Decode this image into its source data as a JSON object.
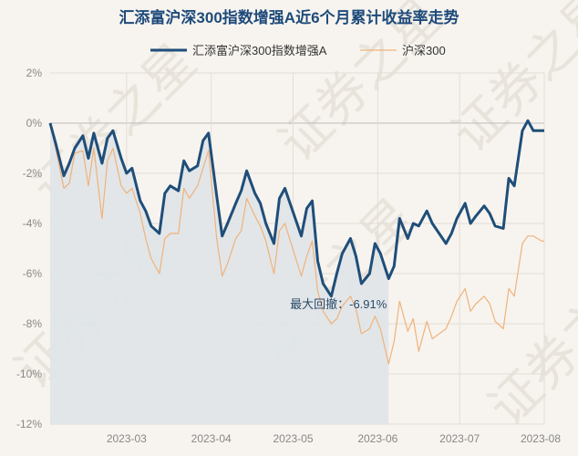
{
  "chart_data": {
    "type": "line",
    "title": "汇添富沪深300指数增强A近6个月累计收益率走势",
    "xlabel": "",
    "ylabel": "",
    "y_unit": "%",
    "ylim": [
      -12,
      2
    ],
    "yticks": [
      2,
      0,
      -2,
      -4,
      -6,
      -8,
      -10,
      -12
    ],
    "xlim": [
      "2023-02-01",
      "2023-08-01"
    ],
    "xticks": [
      "2023-03",
      "2023-04",
      "2023-05",
      "2023-06",
      "2023-07",
      "2023-08"
    ],
    "grid": true,
    "legend_position": "top",
    "watermark": "证券之星",
    "annotation": {
      "label": "最大回撤：-6.91%",
      "date": "2023-06-05",
      "value": -6.91
    },
    "series": [
      {
        "name": "汇添富沪深300指数增强A",
        "color": "#1f4e79",
        "x": [
          "2023-02-01",
          "2023-02-03",
          "2023-02-06",
          "2023-02-08",
          "2023-02-10",
          "2023-02-13",
          "2023-02-15",
          "2023-02-17",
          "2023-02-20",
          "2023-02-22",
          "2023-02-24",
          "2023-02-27",
          "2023-03-01",
          "2023-03-03",
          "2023-03-06",
          "2023-03-08",
          "2023-03-10",
          "2023-03-13",
          "2023-03-15",
          "2023-03-17",
          "2023-03-20",
          "2023-03-22",
          "2023-03-24",
          "2023-03-27",
          "2023-03-29",
          "2023-03-31",
          "2023-04-03",
          "2023-04-05",
          "2023-04-07",
          "2023-04-10",
          "2023-04-12",
          "2023-04-14",
          "2023-04-17",
          "2023-04-19",
          "2023-04-21",
          "2023-04-24",
          "2023-04-26",
          "2023-04-28",
          "2023-05-04",
          "2023-05-06",
          "2023-05-08",
          "2023-05-10",
          "2023-05-12",
          "2023-05-15",
          "2023-05-17",
          "2023-05-19",
          "2023-05-22",
          "2023-05-24",
          "2023-05-26",
          "2023-05-29",
          "2023-05-31",
          "2023-06-02",
          "2023-06-05",
          "2023-06-07",
          "2023-06-09",
          "2023-06-12",
          "2023-06-14",
          "2023-06-16",
          "2023-06-19",
          "2023-06-21",
          "2023-06-26",
          "2023-06-28",
          "2023-06-30",
          "2023-07-03",
          "2023-07-05",
          "2023-07-07",
          "2023-07-10",
          "2023-07-12",
          "2023-07-14",
          "2023-07-17",
          "2023-07-19",
          "2023-07-21",
          "2023-07-24",
          "2023-07-26",
          "2023-07-28",
          "2023-07-31",
          "2023-08-01"
        ],
        "values": [
          0.0,
          -0.8,
          -2.1,
          -1.6,
          -1.0,
          -0.5,
          -1.4,
          -0.4,
          -1.6,
          -0.6,
          -0.3,
          -1.4,
          -2.0,
          -1.8,
          -3.1,
          -3.5,
          -4.1,
          -4.4,
          -2.8,
          -2.5,
          -2.7,
          -1.5,
          -1.9,
          -1.7,
          -0.7,
          -0.4,
          -2.9,
          -4.5,
          -4.0,
          -3.2,
          -2.7,
          -1.9,
          -2.8,
          -3.2,
          -4.0,
          -4.8,
          -3.0,
          -2.6,
          -4.5,
          -3.4,
          -3.1,
          -5.5,
          -6.4,
          -6.9,
          -6.0,
          -5.2,
          -4.6,
          -5.3,
          -6.4,
          -6.0,
          -4.8,
          -5.2,
          -6.2,
          -5.7,
          -3.8,
          -4.6,
          -4.0,
          -4.1,
          -3.5,
          -4.0,
          -4.8,
          -4.4,
          -3.8,
          -3.2,
          -4.0,
          -3.7,
          -3.3,
          -3.6,
          -4.1,
          -4.2,
          -2.2,
          -2.5,
          -0.3,
          0.1,
          -0.3,
          -0.3,
          -0.3
        ]
      },
      {
        "name": "沪深300",
        "color": "#f0b27a",
        "x": [
          "2023-02-01",
          "2023-02-03",
          "2023-02-06",
          "2023-02-08",
          "2023-02-10",
          "2023-02-13",
          "2023-02-15",
          "2023-02-17",
          "2023-02-20",
          "2023-02-22",
          "2023-02-24",
          "2023-02-27",
          "2023-03-01",
          "2023-03-03",
          "2023-03-06",
          "2023-03-08",
          "2023-03-10",
          "2023-03-13",
          "2023-03-15",
          "2023-03-17",
          "2023-03-20",
          "2023-03-22",
          "2023-03-24",
          "2023-03-27",
          "2023-03-29",
          "2023-03-31",
          "2023-04-03",
          "2023-04-05",
          "2023-04-07",
          "2023-04-10",
          "2023-04-12",
          "2023-04-14",
          "2023-04-17",
          "2023-04-19",
          "2023-04-21",
          "2023-04-24",
          "2023-04-26",
          "2023-04-28",
          "2023-05-04",
          "2023-05-06",
          "2023-05-08",
          "2023-05-10",
          "2023-05-12",
          "2023-05-15",
          "2023-05-17",
          "2023-05-19",
          "2023-05-22",
          "2023-05-24",
          "2023-05-26",
          "2023-05-29",
          "2023-05-31",
          "2023-06-02",
          "2023-06-05",
          "2023-06-07",
          "2023-06-09",
          "2023-06-12",
          "2023-06-14",
          "2023-06-16",
          "2023-06-19",
          "2023-06-21",
          "2023-06-26",
          "2023-06-28",
          "2023-06-30",
          "2023-07-03",
          "2023-07-05",
          "2023-07-07",
          "2023-07-10",
          "2023-07-12",
          "2023-07-14",
          "2023-07-17",
          "2023-07-19",
          "2023-07-21",
          "2023-07-24",
          "2023-07-26",
          "2023-07-28",
          "2023-07-31",
          "2023-08-01"
        ],
        "values": [
          0.0,
          -1.0,
          -2.6,
          -2.4,
          -1.2,
          -1.1,
          -2.5,
          -1.0,
          -3.8,
          -1.5,
          -1.0,
          -2.5,
          -2.8,
          -2.6,
          -3.6,
          -4.6,
          -5.4,
          -6.0,
          -4.6,
          -4.4,
          -4.4,
          -2.6,
          -3.0,
          -2.5,
          -1.8,
          -1.1,
          -4.6,
          -6.1,
          -5.6,
          -4.6,
          -4.3,
          -3.0,
          -3.7,
          -4.1,
          -4.7,
          -6.0,
          -4.3,
          -4.0,
          -6.1,
          -5.3,
          -4.7,
          -6.7,
          -7.5,
          -8.0,
          -7.8,
          -7.3,
          -6.9,
          -7.4,
          -8.4,
          -8.2,
          -7.7,
          -8.2,
          -9.6,
          -8.7,
          -7.1,
          -8.3,
          -7.8,
          -9.1,
          -7.9,
          -8.6,
          -8.2,
          -7.7,
          -7.1,
          -6.6,
          -7.5,
          -7.2,
          -6.9,
          -7.2,
          -7.9,
          -8.2,
          -6.6,
          -6.9,
          -4.8,
          -4.5,
          -4.5,
          -4.7,
          -4.7
        ]
      }
    ]
  }
}
